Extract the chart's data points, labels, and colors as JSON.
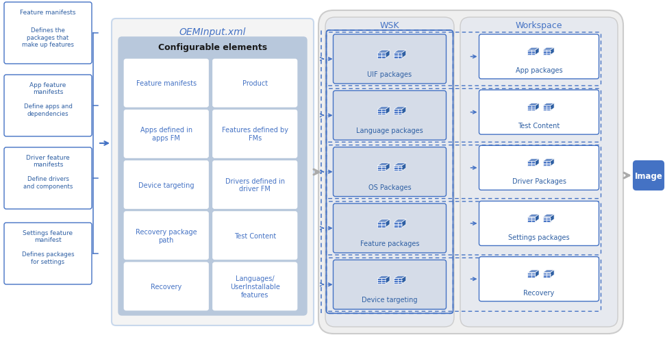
{
  "bg_color": "#ffffff",
  "blue_dark": "#2E5FA3",
  "blue_medium": "#4472C4",
  "blue_light": "#B8CCE4",
  "gray_border": "#BBBBBB",
  "center_title": "OEMInput.xml",
  "inner_title": "Configurable elements",
  "left_boxes": [
    {
      "title": "Feature manifests",
      "desc": "Defines the\npackages that\nmake up features"
    },
    {
      "title": "App feature\nmanifests",
      "desc": "Define apps and\ndependencies"
    },
    {
      "title": "Driver feature\nmanifests",
      "desc": "Define drivers\nand components"
    },
    {
      "title": "Settings feature\nmanifest",
      "desc": "Defines packages\nfor settings"
    }
  ],
  "left_cells": [
    "Feature manifests",
    "Apps defined in\napps FM",
    "Device targeting",
    "Recovery package\npath",
    "Recovery"
  ],
  "right_cells": [
    "Product",
    "Features defined by\nFMs",
    "Drivers defined in\ndriver FM",
    "Test Content",
    "Languages/\nUserInstallable\nfeatures"
  ],
  "wsk_boxes": [
    "UIF packages",
    "Language packages",
    "OS Packages",
    "Feature packages",
    "Device targeting"
  ],
  "workspace_boxes": [
    "App packages",
    "Test Content",
    "Driver Packages",
    "Settings packages",
    "Recovery"
  ],
  "image_label": "Image"
}
